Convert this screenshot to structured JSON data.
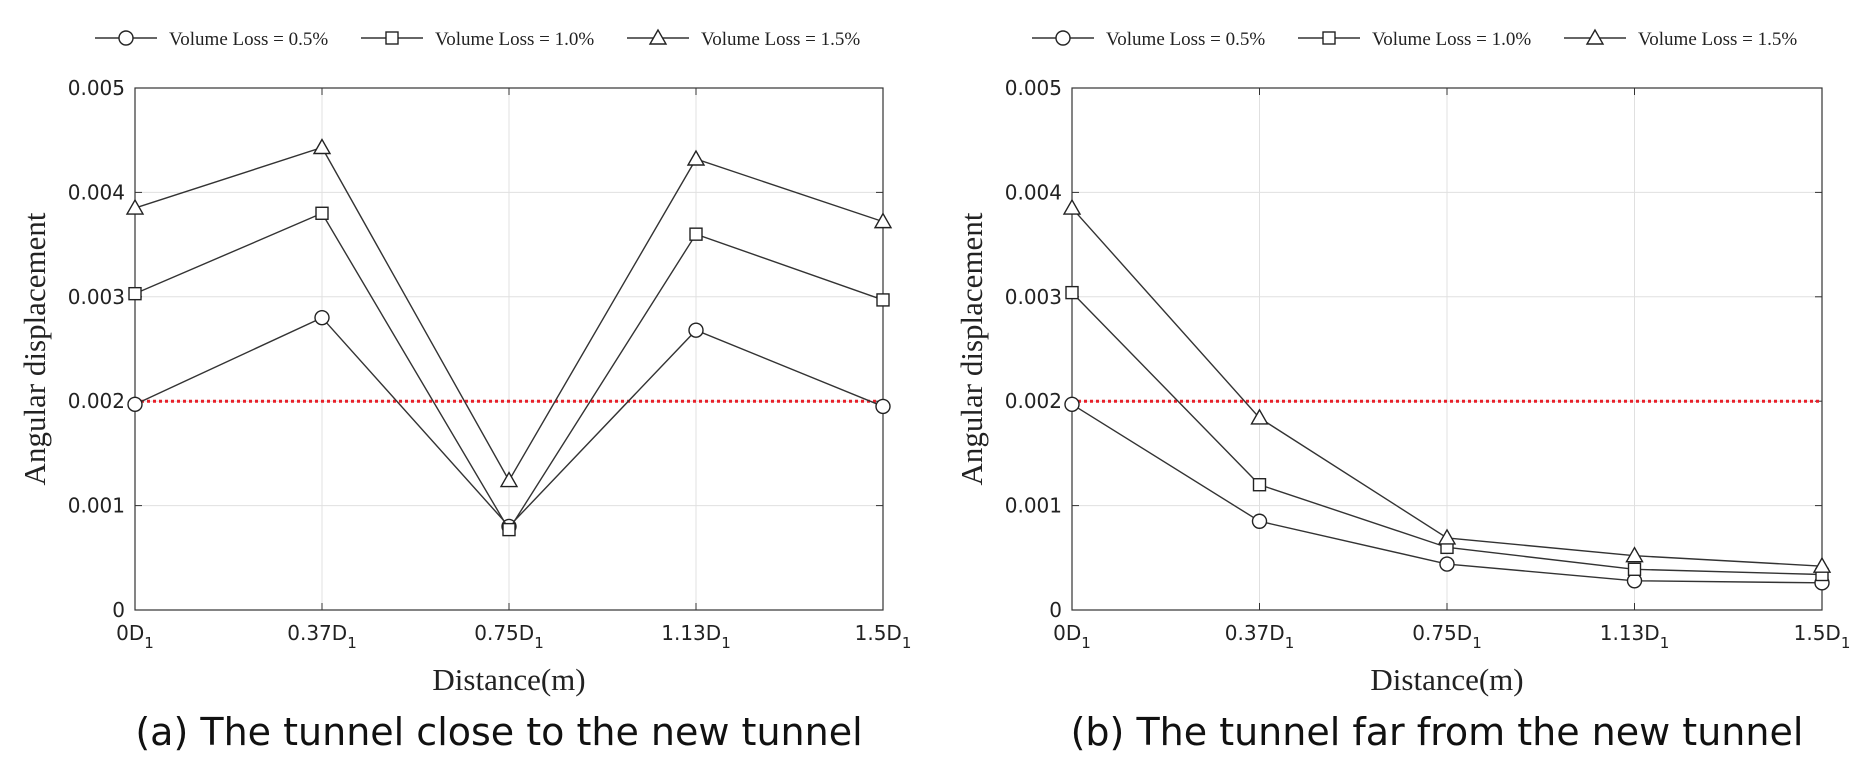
{
  "chart_data": [
    {
      "type": "line",
      "caption": "(a) The tunnel close to the new tunnel",
      "xlabel": "Distance(m)",
      "ylabel": "Angular displacement",
      "categories": [
        {
          "main": "0D",
          "sub": "1"
        },
        {
          "main": "0.37D",
          "sub": "1"
        },
        {
          "main": "0.75D",
          "sub": "1"
        },
        {
          "main": "1.13D",
          "sub": "1"
        },
        {
          "main": "1.5D",
          "sub": "1"
        }
      ],
      "yticks": [
        "0",
        "0.001",
        "0.002",
        "0.003",
        "0.004",
        "0.005"
      ],
      "ylim": [
        0,
        0.005
      ],
      "grid": true,
      "legend_position": "top",
      "threshold": {
        "value": 0.002,
        "color": "#e8202a",
        "style": "dotted"
      },
      "series": [
        {
          "name": "Volume Loss = 0.5%",
          "marker": "circle",
          "values": [
            0.00197,
            0.0028,
            0.0008,
            0.00268,
            0.00195
          ]
        },
        {
          "name": "Volume Loss = 1.0%",
          "marker": "square",
          "values": [
            0.00303,
            0.0038,
            0.00077,
            0.0036,
            0.00297
          ]
        },
        {
          "name": "Volume Loss = 1.5%",
          "marker": "triangle",
          "values": [
            0.00385,
            0.00443,
            0.00124,
            0.00432,
            0.00372
          ]
        }
      ]
    },
    {
      "type": "line",
      "caption": "(b) The tunnel far from the new tunnel",
      "xlabel": "Distance(m)",
      "ylabel": "Angular displacement",
      "categories": [
        {
          "main": "0D",
          "sub": "1"
        },
        {
          "main": "0.37D",
          "sub": "1"
        },
        {
          "main": "0.75D",
          "sub": "1"
        },
        {
          "main": "1.13D",
          "sub": "1"
        },
        {
          "main": "1.5D",
          "sub": "1"
        }
      ],
      "yticks": [
        "0",
        "0.001",
        "0.002",
        "0.003",
        "0.004",
        "0.005"
      ],
      "ylim": [
        0,
        0.005
      ],
      "grid": true,
      "legend_position": "top",
      "threshold": {
        "value": 0.002,
        "color": "#e8202a",
        "style": "dotted"
      },
      "series": [
        {
          "name": "Volume Loss = 0.5%",
          "marker": "circle",
          "values": [
            0.00197,
            0.00085,
            0.00044,
            0.00028,
            0.00026
          ]
        },
        {
          "name": "Volume Loss = 1.0%",
          "marker": "square",
          "values": [
            0.00304,
            0.0012,
            0.0006,
            0.00039,
            0.00034
          ]
        },
        {
          "name": "Volume Loss = 1.5%",
          "marker": "triangle",
          "values": [
            0.00385,
            0.00184,
            0.00069,
            0.00052,
            0.00042
          ]
        }
      ]
    }
  ]
}
